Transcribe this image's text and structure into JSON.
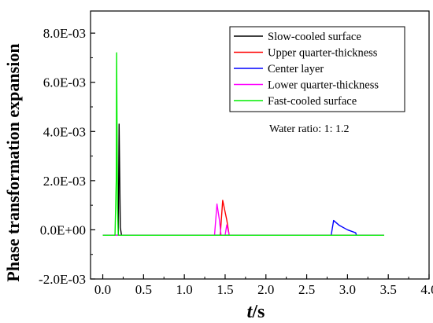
{
  "chart_data": {
    "type": "line",
    "title": "",
    "xlabel_italic": "t",
    "xlabel_unit": "/s",
    "ylabel": "Phase transformation expansion",
    "xlim": [
      -0.15,
      4.0
    ],
    "ylim": [
      -0.002,
      0.0089
    ],
    "x_ticks": [
      0.0,
      0.5,
      1.0,
      1.5,
      2.0,
      2.5,
      3.0,
      3.5,
      4.0
    ],
    "x_tick_labels": [
      "0.0",
      "0.5",
      "1.0",
      "1.5",
      "2.0",
      "2.5",
      "3.0",
      "3.5",
      "4.0"
    ],
    "y_ticks": [
      -0.002,
      0.0,
      0.002,
      0.004,
      0.006,
      0.008
    ],
    "y_tick_labels": [
      "-2.0E-03",
      "0.0E+00",
      "2.0E-03",
      "4.0E-03",
      "6.0E-03",
      "8.0E-03"
    ],
    "grid": false,
    "legend_position": "top-right",
    "annotation": "Water ratio:  1: 1.2",
    "series": [
      {
        "name": "Slow-cooled surface",
        "color": "#000000",
        "points": [
          [
            0.0,
            -0.00022
          ],
          [
            0.19,
            -0.00022
          ],
          [
            0.2,
            0.0043
          ],
          [
            0.215,
            0.0001
          ],
          [
            0.23,
            -0.00022
          ],
          [
            3.45,
            -0.00022
          ]
        ]
      },
      {
        "name": "Upper quarter-thickness",
        "color": "#ff0000",
        "points": [
          [
            0.0,
            -0.00022
          ],
          [
            1.44,
            -0.00022
          ],
          [
            1.47,
            0.0012
          ],
          [
            1.52,
            0.0004
          ],
          [
            1.55,
            -0.00022
          ],
          [
            3.45,
            -0.00022
          ]
        ]
      },
      {
        "name": "Center layer",
        "color": "#0000ff",
        "points": [
          [
            0.0,
            -0.00022
          ],
          [
            2.8,
            -0.00022
          ],
          [
            2.83,
            0.00038
          ],
          [
            2.9,
            0.00018
          ],
          [
            3.0,
            0.0
          ],
          [
            3.1,
            -0.00012
          ],
          [
            3.11,
            -0.00022
          ],
          [
            3.45,
            -0.00022
          ]
        ]
      },
      {
        "name": "Lower quarter-thickness",
        "color": "#ff00ff",
        "points": [
          [
            0.0,
            -0.00022
          ],
          [
            1.37,
            -0.00022
          ],
          [
            1.4,
            0.00105
          ],
          [
            1.43,
            0.0004
          ],
          [
            1.45,
            -0.00022
          ],
          [
            1.5,
            -0.00022
          ],
          [
            1.52,
            0.0002
          ],
          [
            1.55,
            -0.00022
          ],
          [
            3.45,
            -0.00022
          ]
        ]
      },
      {
        "name": "Fast-cooled surface",
        "color": "#00ee00",
        "points": [
          [
            0.0,
            -0.00022
          ],
          [
            0.15,
            -0.00022
          ],
          [
            0.165,
            0.002
          ],
          [
            0.17,
            0.0072
          ],
          [
            0.18,
            0.001
          ],
          [
            0.19,
            -0.00022
          ],
          [
            3.45,
            -0.00022
          ]
        ]
      }
    ]
  }
}
